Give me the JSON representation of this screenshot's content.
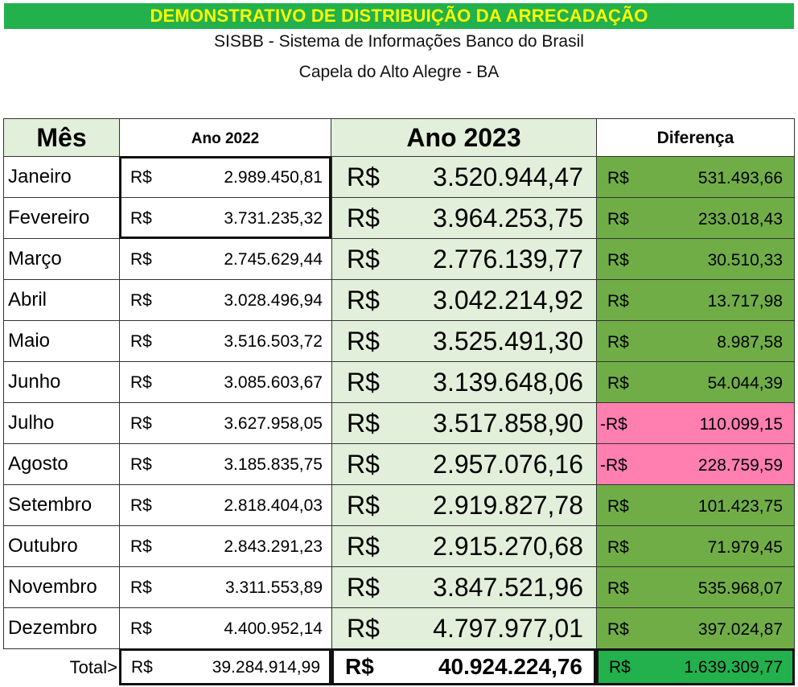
{
  "banner": "DEMONSTRATIVO DE DISTRIBUIÇÃO DA ARRECADAÇÃO",
  "subtitle1": "SISBB - Sistema de Informações Banco do Brasil",
  "subtitle2": "Capela do Alto Alegre - BA",
  "headers": {
    "mes": "Mês",
    "ano2022": "Ano 2022",
    "ano2023": "Ano 2023",
    "diferenca": "Diferença"
  },
  "currency": "R$",
  "neg_currency": "-R$",
  "rows": [
    {
      "mes": "Janeiro",
      "v2022": "2.989.450,81",
      "v2023": "3.520.944,47",
      "dif": "531.493,66",
      "neg": false
    },
    {
      "mes": "Fevereiro",
      "v2022": "3.731.235,32",
      "v2023": "3.964.253,75",
      "dif": "233.018,43",
      "neg": false
    },
    {
      "mes": "Março",
      "v2022": "2.745.629,44",
      "v2023": "2.776.139,77",
      "dif": "30.510,33",
      "neg": false
    },
    {
      "mes": "Abril",
      "v2022": "3.028.496,94",
      "v2023": "3.042.214,92",
      "dif": "13.717,98",
      "neg": false
    },
    {
      "mes": "Maio",
      "v2022": "3.516.503,72",
      "v2023": "3.525.491,30",
      "dif": "8.987,58",
      "neg": false
    },
    {
      "mes": "Junho",
      "v2022": "3.085.603,67",
      "v2023": "3.139.648,06",
      "dif": "54.044,39",
      "neg": false
    },
    {
      "mes": "Julho",
      "v2022": "3.627.958,05",
      "v2023": "3.517.858,90",
      "dif": "110.099,15",
      "neg": true
    },
    {
      "mes": "Agosto",
      "v2022": "3.185.835,75",
      "v2023": "2.957.076,16",
      "dif": "228.759,59",
      "neg": true
    },
    {
      "mes": "Setembro",
      "v2022": "2.818.404,03",
      "v2023": "2.919.827,78",
      "dif": "101.423,75",
      "neg": false
    },
    {
      "mes": "Outubro",
      "v2022": "2.843.291,23",
      "v2023": "2.915.270,68",
      "dif": "71.979,45",
      "neg": false
    },
    {
      "mes": "Novembro",
      "v2022": "3.311.553,89",
      "v2023": "3.847.521,96",
      "dif": "535.968,07",
      "neg": false
    },
    {
      "mes": "Dezembro",
      "v2022": "4.400.952,14",
      "v2023": "4.797.977,01",
      "dif": "397.024,87",
      "neg": false
    }
  ],
  "total": {
    "label": "Total>",
    "v2022": "39.284.914,99",
    "v2023": "40.924.224,76",
    "dif": "1.639.309,77"
  }
}
